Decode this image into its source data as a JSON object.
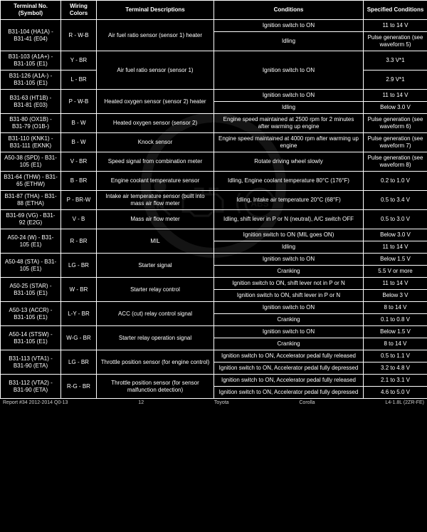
{
  "headers": {
    "terminal": "Terminal No. (Symbol)",
    "wiring": "Wiring Colors",
    "desc": "Terminal Descriptions",
    "cond": "Conditions",
    "spec": "Specified Conditions"
  },
  "rows": [
    {
      "terminal": "B31-104 (HA1A) - B31-41 (E04)",
      "wiring": "R - W-B",
      "desc": "Air fuel ratio sensor (sensor 1) heater",
      "sub": [
        {
          "cond": "Ignition switch to ON",
          "spec": "11 to 14 V"
        },
        {
          "cond": "Idling",
          "spec": "Pulse generation (see waveform 5)"
        }
      ]
    },
    {
      "terminal": "B31-103 (A1A+) - B31-105 (E1)",
      "wiring": "Y - BR",
      "desc": "Air fuel ratio sensor (sensor 1)",
      "sub": [
        {
          "cond": "Ignition switch to ON",
          "spec": "3.3 V*1"
        }
      ],
      "shareDescWithNext": true,
      "shareCondWithNext": true
    },
    {
      "terminal": "B31-126 (A1A-) - B31-105 (E1)",
      "wiring": "L - BR",
      "sub": [
        {
          "spec": "2.9 V*1"
        }
      ]
    },
    {
      "terminal": "B31-63 (HT1B) - B31-81 (E03)",
      "wiring": "P - W-B",
      "desc": "Heated oxygen sensor (sensor 2) heater",
      "sub": [
        {
          "cond": "Ignition switch to ON",
          "spec": "11 to 14 V"
        },
        {
          "cond": "Idling",
          "spec": "Below 3.0 V"
        }
      ]
    },
    {
      "terminal": "B31-80 (OX1B) - B31-79 (O1B-)",
      "wiring": "B - W",
      "desc": "Heated oxygen sensor (sensor 2)",
      "sub": [
        {
          "cond": "Engine speed maintained at 2500 rpm for 2 minutes after warming up engine",
          "spec": "Pulse generation (see waveform 6)"
        }
      ]
    },
    {
      "terminal": "B31-110 (KNK1) - B31-111 (EKNK)",
      "wiring": "B - W",
      "desc": "Knock sensor",
      "sub": [
        {
          "cond": "Engine speed maintained at 4000 rpm after warming up engine",
          "spec": "Pulse generation (see waveform 7)"
        }
      ]
    },
    {
      "terminal": "A50-38 (SPD) - B31-105 (E1)",
      "wiring": "V - BR",
      "desc": "Speed signal from combination meter",
      "sub": [
        {
          "cond": "Rotate driving wheel slowly",
          "spec": "Pulse generation (see waveform 8)"
        }
      ]
    },
    {
      "terminal": "B31-64 (THW) - B31-65 (ETHW)",
      "wiring": "B - BR",
      "desc": "Engine coolant temperature sensor",
      "sub": [
        {
          "cond": "Idling, Engine coolant temperature 80°C (176°F)",
          "spec": "0.2 to 1.0 V"
        }
      ]
    },
    {
      "terminal": "B31-87 (THA) - B31-88 (ETHA)",
      "wiring": "P - BR-W",
      "desc": "Intake air temperature sensor (built into mass air flow meter",
      "sub": [
        {
          "cond": "Idling, Intake air temperature 20°C (68°F)",
          "spec": "0.5 to 3.4 V"
        }
      ]
    },
    {
      "terminal": "B31-69 (VG) - B31-92 (E2G)",
      "wiring": "V - B",
      "desc": "Mass air flow meter",
      "sub": [
        {
          "cond": "Idling, shift lever in P or N (neutral), A/C switch OFF",
          "spec": "0.5 to 3.0 V"
        }
      ]
    },
    {
      "terminal": "A50-24 (W) - B31-105 (E1)",
      "wiring": "R - BR",
      "desc": "MIL",
      "sub": [
        {
          "cond": "Ignition switch to ON (MIL goes ON)",
          "spec": "Below 3.0 V"
        },
        {
          "cond": "Idling",
          "spec": "11 to 14 V"
        }
      ]
    },
    {
      "terminal": "A50-48 (STA) - B31-105 (E1)",
      "wiring": "LG - BR",
      "desc": "Starter signal",
      "sub": [
        {
          "cond": "Ignition switch to ON",
          "spec": "Below 1.5 V"
        },
        {
          "cond": "Cranking",
          "spec": "5.5 V or more"
        }
      ]
    },
    {
      "terminal": "A50-25 (STAR) - B31-105 (E1)",
      "wiring": "W - BR",
      "desc": "Starter relay control",
      "sub": [
        {
          "cond": "Ignition switch to ON, shift lever not in P or N",
          "spec": "11 to 14 V"
        },
        {
          "cond": "Ignition switch to ON, shift lever in P or N",
          "spec": "Below 3 V"
        }
      ]
    },
    {
      "terminal": "A50-13 (ACCR) - B31-105 (E1)",
      "wiring": "L-Y - BR",
      "desc": "ACC (cut) relay control signal",
      "sub": [
        {
          "cond": "Ignition switch to ON",
          "spec": "8 to 14 V"
        },
        {
          "cond": "Cranking",
          "spec": "0.1 to 0.8 V"
        }
      ]
    },
    {
      "terminal": "A50-14 (STSW) - B31-105 (E1)",
      "wiring": "W-G - BR",
      "desc": "Starter relay operation signal",
      "sub": [
        {
          "cond": "Ignition switch to ON",
          "spec": "Below 1.5 V"
        },
        {
          "cond": "Cranking",
          "spec": "8 to 14 V"
        }
      ]
    },
    {
      "terminal": "B31-113 (VTA1) - B31-90 (ETA)",
      "wiring": "LG - BR",
      "desc": "Throttle position sensor (for engine control)",
      "sub": [
        {
          "cond": "Ignition switch to ON, Accelerator pedal fully released",
          "spec": "0.5 to 1.1 V"
        },
        {
          "cond": "Ignition switch to ON, Accelerator pedal fully depressed",
          "spec": "3.2 to 4.8 V"
        }
      ]
    },
    {
      "terminal": "B31-112 (VTA2) - B31-90 (ETA)",
      "wiring": "R-G - BR",
      "desc": "Throttle position sensor (for sensor malfunction detection)",
      "sub": [
        {
          "cond": "Ignition switch to ON, Accelerator pedal fully released",
          "spec": "2.1 to 3.1 V"
        },
        {
          "cond": "Ignition switch to ON, Accelerator pedal fully depressed",
          "spec": "4.6 to 5.0 V"
        }
      ]
    }
  ],
  "footer": {
    "left": "Report #34 2012-2014 Q0-13",
    "page": "12",
    "make": "Toyota",
    "model": "Corolla",
    "engine": "L4-1.8L (2ZR-FE)"
  },
  "watermark": {
    "circle_r": 95,
    "stroke": "#666",
    "fill": "none"
  }
}
